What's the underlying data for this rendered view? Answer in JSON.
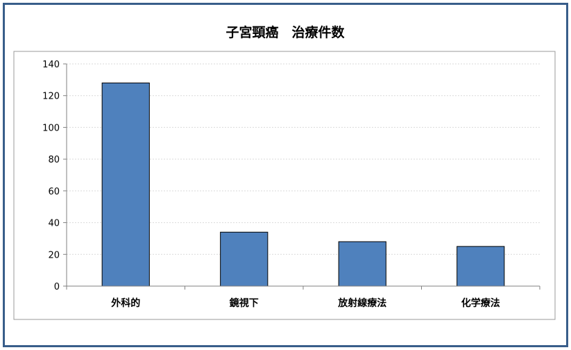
{
  "chart_data": {
    "type": "bar",
    "title": "子宮頸癌　治療件数",
    "categories": [
      "外科的",
      "鏡視下",
      "放射線療法",
      "化学療法"
    ],
    "values": [
      128,
      34,
      28,
      25
    ],
    "ylim": [
      0,
      140
    ],
    "yticks": [
      0,
      20,
      40,
      60,
      80,
      100,
      120,
      140
    ],
    "xlabel": "",
    "ylabel": "",
    "grid": true,
    "legend": "none"
  },
  "colors": {
    "bar_fill": "#4f81bd",
    "bar_stroke": "#000000",
    "frame_border": "#385d8a",
    "plot_border": "#999999",
    "grid": "#d9d9d9",
    "axis": "#808080"
  }
}
